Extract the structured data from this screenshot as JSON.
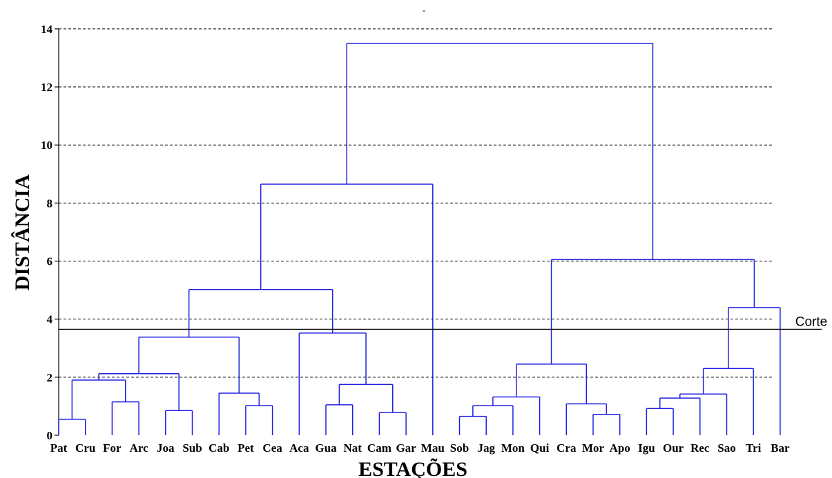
{
  "chart_data": {
    "type": "dendrogram",
    "title": "\"",
    "xlabel": "ESTAÇÕES",
    "ylabel": "DISTÂNCIA",
    "ylim": [
      0,
      14
    ],
    "yticks": [
      0,
      2,
      4,
      6,
      8,
      10,
      12,
      14
    ],
    "grid": "horizontal dashed",
    "leaves": [
      "Pat",
      "Cru",
      "For",
      "Arc",
      "Joa",
      "Sub",
      "Cab",
      "Pet",
      "Cea",
      "Aca",
      "Gua",
      "Nat",
      "Cam",
      "Gar",
      "Mau",
      "Sob",
      "Jag",
      "Mon",
      "Qui",
      "Cra",
      "Mor",
      "Apo",
      "Igu",
      "Our",
      "Rec",
      "Sao",
      "Tri",
      "Bar"
    ],
    "leaf_positions": [
      1,
      2,
      3,
      4,
      5,
      6,
      7,
      8,
      9,
      10,
      11,
      12,
      13,
      14,
      15,
      16,
      17,
      18,
      19,
      20,
      21,
      22,
      23,
      24,
      25,
      26,
      27,
      28
    ],
    "merges": [
      {
        "left": "Pat",
        "right": "Cru",
        "height": 0.55
      },
      {
        "left": "For",
        "right": "Arc",
        "height": 1.15
      },
      {
        "left": "Joa",
        "right": "Sub",
        "height": 0.85
      },
      {
        "left": "Pet",
        "right": "Cea",
        "height": 1.02
      },
      {
        "left": "Gua",
        "right": "Nat",
        "height": 1.05
      },
      {
        "left": "Cam",
        "right": "Gar",
        "height": 0.78
      },
      {
        "left": "Sob",
        "right": "Jag",
        "height": 0.65
      },
      {
        "left": "Mor",
        "right": "Apo",
        "height": 0.72
      },
      {
        "left": "Igu",
        "right": "Our",
        "height": 0.92
      },
      {
        "left": "(Sob,Jag)",
        "right": "Mon",
        "height": 1.02
      },
      {
        "left": "Cra",
        "right": "(Mor,Apo)",
        "height": 1.08
      },
      {
        "left": "(Igu,Our)",
        "right": "Rec",
        "height": 1.28
      },
      {
        "left": "(Igu,Our,Rec)",
        "right": "Sao",
        "height": 1.42
      },
      {
        "left": "(Sob,Jag,Mon)",
        "right": "Qui",
        "height": 1.32
      },
      {
        "left": "Cab",
        "right": "(Pet,Cea)",
        "height": 1.45
      },
      {
        "left": "(Gua,Nat)",
        "right": "(Cam,Gar)",
        "height": 1.75
      },
      {
        "left": "(Pat,Cru)",
        "right": "(For,Arc)",
        "height": 1.9
      },
      {
        "left": "(Pat,Cru,For,Arc)",
        "right": "(Joa,Sub)",
        "height": 2.12
      },
      {
        "left": "(Igu,Our,Rec,Sao)",
        "right": "Tri",
        "height": 2.3
      },
      {
        "left": "(Sob,Jag,Mon,Qui)",
        "right": "(Cra,Mor,Apo)",
        "height": 2.45
      },
      {
        "left": "(Pat..Sub)",
        "right": "(Cab,Pet,Cea)",
        "height": 3.38
      },
      {
        "left": "Aca",
        "right": "(Gua,Nat,Cam,Gar)",
        "height": 3.52
      },
      {
        "left": "(Igu..Tri)",
        "right": "Bar",
        "height": 4.4
      },
      {
        "left": "(Pat..Cea)",
        "right": "(Aca..Gar)",
        "height": 5.02
      },
      {
        "left": "(Sob..Apo)",
        "right": "(Igu..Bar)",
        "height": 6.05
      },
      {
        "left": "(Pat..Gar)",
        "right": "Mau",
        "height": 8.65
      },
      {
        "left": "(Pat..Mau)",
        "right": "(Sob..Bar)",
        "height": 13.5
      }
    ],
    "cut_line": {
      "value": 3.65,
      "label": "Corte"
    },
    "colors": {
      "links": "#2020e0",
      "grid": "#000000",
      "cut": "#000000"
    }
  }
}
